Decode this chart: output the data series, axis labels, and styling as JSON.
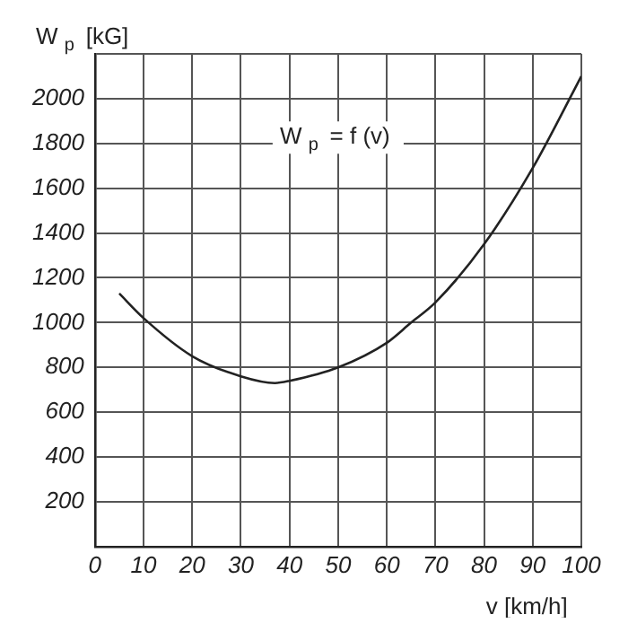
{
  "chart_data": {
    "type": "line",
    "xlabel": "v [km/h]",
    "ylabel": "W$_{p}$ [kG]",
    "annotations": [
      "W$_{p}$ = f (v)"
    ],
    "x": [
      5,
      10,
      20,
      30,
      37,
      40,
      50,
      60,
      65,
      70,
      80,
      90,
      100
    ],
    "series": [
      {
        "color": "#222222",
        "values": [
          1130,
          1020,
          850,
          760,
          730,
          740,
          800,
          910,
          1000,
          1090,
          1350,
          1690,
          2100
        ]
      }
    ],
    "xlim": [
      0,
      100
    ],
    "xticks": [
      0,
      10,
      20,
      30,
      40,
      50,
      60,
      70,
      80,
      90,
      100
    ],
    "ylim": [
      0,
      2200
    ],
    "yticks": [
      {
        "value": 0,
        "label": null
      },
      200,
      400,
      600,
      800,
      1000,
      1200,
      1400,
      1600,
      1800,
      2000,
      {
        "value": 2200,
        "label": null
      }
    ],
    "grid": true,
    "legend": false,
    "marker": "none",
    "line_style": "solid"
  }
}
